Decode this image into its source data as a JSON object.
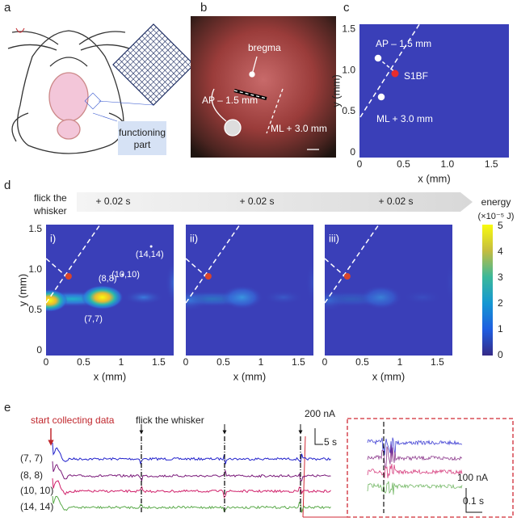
{
  "panel_labels": [
    "a",
    "b",
    "c",
    "d",
    "e"
  ],
  "a": {
    "box_label": [
      "functioning",
      "part"
    ]
  },
  "b": {
    "labels": [
      "bregma",
      "AP – 1.5 mm",
      "ML + 3.0 mm"
    ]
  },
  "c": {
    "labels": [
      "AP – 1.5 mm",
      "S1BF",
      "ML + 3.0 mm"
    ],
    "x_label": "x (mm)",
    "y_label": "y (mm)",
    "x_ticks": [
      "0",
      "0.5",
      "1.0",
      "1.5"
    ],
    "y_ticks": [
      "0",
      "0.5",
      "1.0",
      "1.5"
    ]
  },
  "d": {
    "timeline": {
      "start": [
        "flick the",
        "whisker"
      ],
      "steps": [
        "+ 0.02 s",
        "+ 0.02 s",
        "+ 0.02 s"
      ]
    },
    "maps": [
      {
        "label": "i)",
        "points": [
          "(14,14)",
          "(10,10)",
          "(8,8)",
          "(7,7)"
        ]
      },
      {
        "label": "ii)"
      },
      {
        "label": "iii)"
      }
    ],
    "x_label": "x (mm)",
    "y_label": "y (mm)",
    "x_ticks": [
      "0",
      "0.5",
      "1",
      "1.5"
    ],
    "y_ticks": [
      "0",
      "0.5",
      "1.0",
      "1.5"
    ],
    "colorbar": {
      "title": "energy",
      "unit": "(×10⁻⁵ J)",
      "ticks": [
        "0",
        "1",
        "2",
        "3",
        "4",
        "5"
      ]
    }
  },
  "e": {
    "start": "start collecting data",
    "flick": "flick the whisker",
    "traces": [
      "(7, 7)",
      "(8, 8)",
      "(10, 10)",
      "(14, 14)"
    ],
    "scale": [
      "200 nA",
      "5 s"
    ],
    "inset_scale": [
      "100 nA",
      "0.1 s"
    ]
  }
}
